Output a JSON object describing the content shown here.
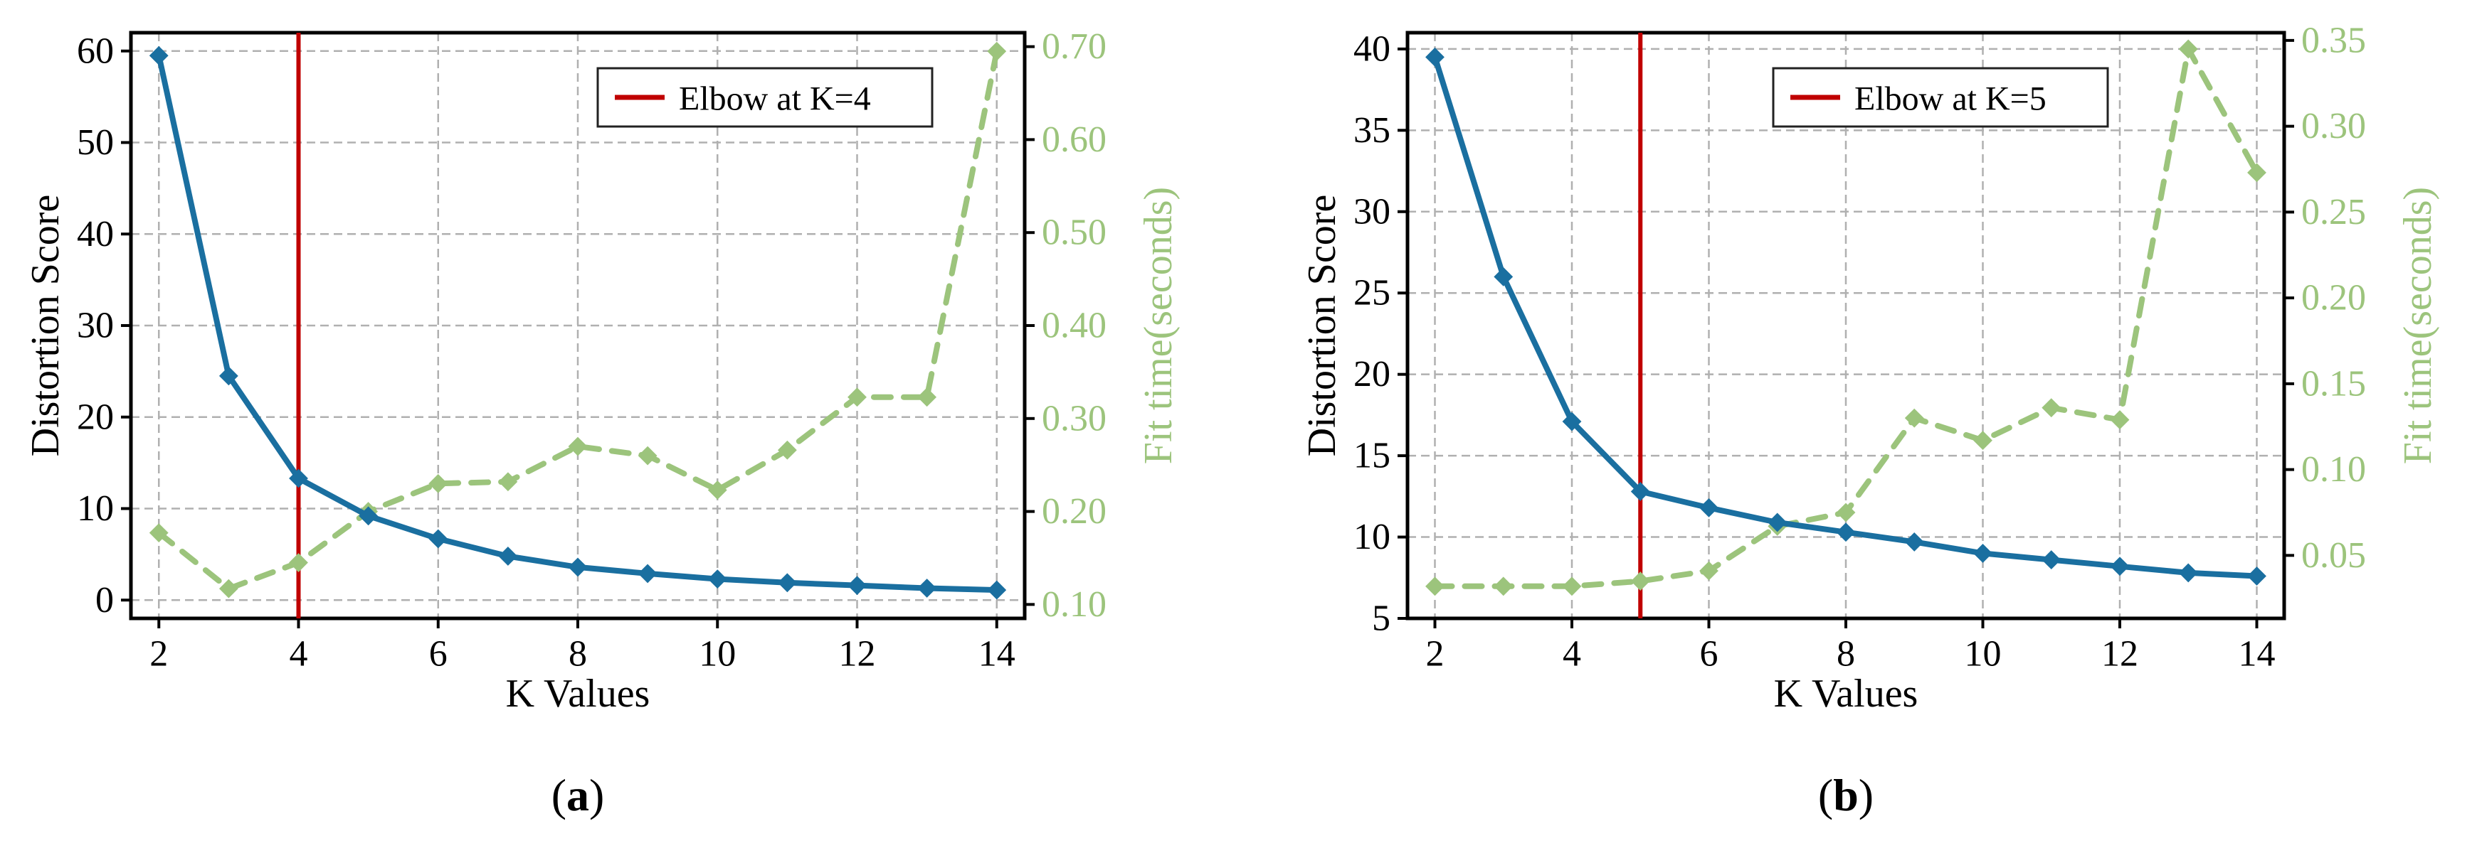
{
  "chart_data": [
    {
      "type": "line",
      "panel_label": "(a)",
      "xlabel": "K Values",
      "ylabel": "Distortion Score",
      "y2label": "Fit time(seconds)",
      "x": [
        2,
        3,
        4,
        5,
        6,
        7,
        8,
        9,
        10,
        11,
        12,
        13,
        14
      ],
      "xticks": [
        "2",
        "4",
        "6",
        "8",
        "10",
        "12",
        "14"
      ],
      "xlim": [
        1.6,
        14.4
      ],
      "yticks": [
        "0",
        "10",
        "20",
        "30",
        "40",
        "50",
        "60"
      ],
      "ylim": [
        -2,
        62
      ],
      "y2ticks": [
        "0.10",
        "0.20",
        "0.30",
        "0.40",
        "0.50",
        "0.60",
        "0.70"
      ],
      "y2lim": [
        0.085,
        0.715
      ],
      "grid": true,
      "legend_position": "top-right",
      "elbow": {
        "x": 4,
        "label": "Elbow at K=4",
        "color": "#c00000"
      },
      "series": [
        {
          "axis": "left",
          "style": "solid",
          "color": "#1a6fa0",
          "values": [
            59.5,
            24.5,
            13.3,
            9.2,
            6.7,
            4.8,
            3.6,
            2.9,
            2.3,
            1.9,
            1.6,
            1.3,
            1.1
          ]
        },
        {
          "axis": "right",
          "style": "dashed",
          "color": "#9cc47c",
          "values": [
            0.177,
            0.117,
            0.145,
            0.2,
            0.23,
            0.232,
            0.27,
            0.26,
            0.223,
            0.266,
            0.323,
            0.323,
            0.695
          ]
        }
      ]
    },
    {
      "type": "line",
      "panel_label": "(b)",
      "xlabel": "K Values",
      "ylabel": "Distortion Score",
      "y2label": "Fit time(seconds)",
      "x": [
        2,
        3,
        4,
        5,
        6,
        7,
        8,
        9,
        10,
        11,
        12,
        13,
        14
      ],
      "xticks": [
        "2",
        "4",
        "6",
        "8",
        "10",
        "12",
        "14"
      ],
      "xlim": [
        1.6,
        14.4
      ],
      "yticks": [
        "5",
        "10",
        "15",
        "20",
        "25",
        "30",
        "35",
        "40"
      ],
      "ylim": [
        5,
        41
      ],
      "y2ticks": [
        "0.05",
        "0.10",
        "0.15",
        "0.20",
        "0.25",
        "0.30",
        "0.35"
      ],
      "y2lim": [
        0.0133,
        0.3545
      ],
      "grid": true,
      "legend_position": "top-right",
      "elbow": {
        "x": 5,
        "label": "Elbow at K=5",
        "color": "#c00000"
      },
      "series": [
        {
          "axis": "left",
          "style": "solid",
          "color": "#1a6fa0",
          "values": [
            39.5,
            26.0,
            17.1,
            12.8,
            11.8,
            10.9,
            10.3,
            9.7,
            9.0,
            8.6,
            8.2,
            7.8,
            7.6
          ]
        },
        {
          "axis": "right",
          "style": "dashed",
          "color": "#9cc47c",
          "values": [
            0.032,
            0.032,
            0.032,
            0.035,
            0.041,
            0.067,
            0.075,
            0.13,
            0.117,
            0.136,
            0.129,
            0.345,
            0.273
          ]
        }
      ]
    }
  ]
}
